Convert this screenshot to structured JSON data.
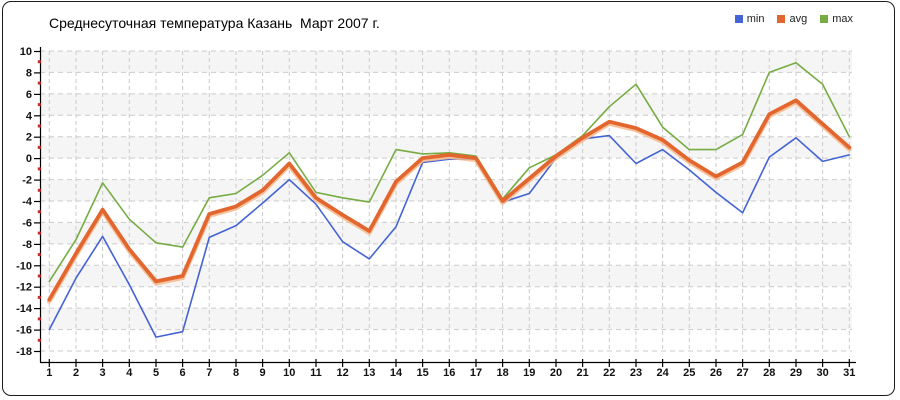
{
  "title": "Среднесуточная температура Казань  Март 2007 г.",
  "legend": [
    {
      "label": "min",
      "color": "#4463D5"
    },
    {
      "label": "avg",
      "color": "#E2662D"
    },
    {
      "label": "max",
      "color": "#76AC43"
    }
  ],
  "chart_data": {
    "type": "line",
    "title": "Среднесуточная температура Казань  Март 2007 г.",
    "xlabel": "",
    "ylabel": "",
    "x": [
      1,
      2,
      3,
      4,
      5,
      6,
      7,
      8,
      9,
      10,
      11,
      12,
      13,
      14,
      15,
      16,
      17,
      18,
      19,
      20,
      21,
      22,
      23,
      24,
      25,
      26,
      27,
      28,
      29,
      30,
      31
    ],
    "series": [
      {
        "name": "min",
        "color": "#4463D5",
        "width": 1.6,
        "values": [
          -16.0,
          -11.2,
          -7.3,
          -11.8,
          -16.7,
          -16.2,
          -7.4,
          -6.3,
          -4.2,
          -2.0,
          -4.3,
          -7.8,
          -9.4,
          -6.4,
          -0.4,
          -0.1,
          -0.1,
          -4.1,
          -3.3,
          0.0,
          1.8,
          2.1,
          -0.5,
          0.8,
          -1.1,
          -3.2,
          -5.1,
          0.1,
          1.9,
          -0.3,
          0.3
        ]
      },
      {
        "name": "avg",
        "color": "#E2662D",
        "width": 3.8,
        "halo": "#F4B88C",
        "values": [
          -13.2,
          -8.9,
          -4.8,
          -8.5,
          -11.5,
          -11.0,
          -5.2,
          -4.5,
          -3.0,
          -0.5,
          -3.7,
          -5.3,
          -6.8,
          -2.2,
          0.0,
          0.3,
          0.0,
          -4.0,
          -1.9,
          0.2,
          1.9,
          3.4,
          2.8,
          1.7,
          -0.2,
          -1.7,
          -0.4,
          4.1,
          5.4,
          3.2,
          1.0
        ]
      },
      {
        "name": "max",
        "color": "#76AC43",
        "width": 1.6,
        "values": [
          -11.5,
          -7.6,
          -2.3,
          -5.7,
          -7.9,
          -8.3,
          -3.7,
          -3.3,
          -1.6,
          0.5,
          -3.2,
          -3.7,
          -4.1,
          0.8,
          0.4,
          0.5,
          0.2,
          -3.8,
          -0.9,
          0.3,
          2.1,
          4.8,
          6.9,
          2.9,
          0.8,
          0.8,
          2.2,
          8.0,
          8.9,
          6.9,
          2.0
        ]
      }
    ],
    "ylim": [
      -18,
      10
    ],
    "y_ticks": [
      10,
      8,
      6,
      4,
      2,
      0,
      -2,
      -4,
      -6,
      -8,
      -10,
      -12,
      -14,
      -16,
      -18
    ],
    "grid": true,
    "legend_position": "top-right",
    "style": {
      "band_fill": "#F5F5F5",
      "grid_color": "#CBCBCB",
      "axis_color": "#000000",
      "minor_tick_color": "#CC2B2B",
      "tick_label_color": "#111111"
    }
  }
}
